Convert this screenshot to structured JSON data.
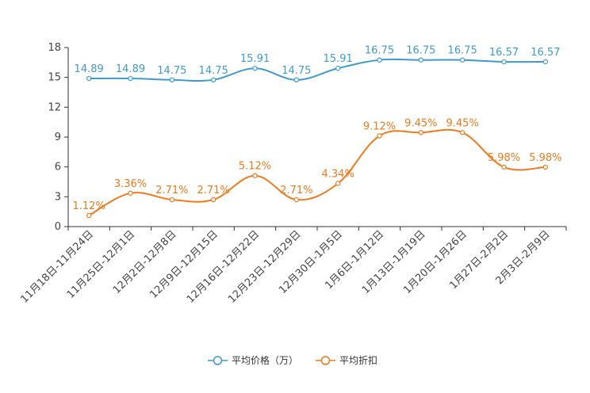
{
  "chart_data": {
    "type": "line",
    "categories": [
      "11月18日-11月24日",
      "11月25日-12月1日",
      "12月2日-12月8日",
      "12月9日-12月15日",
      "12月16日-12月22日",
      "12月23日-12月29日",
      "12月30日-1月5日",
      "1月6日-1月12日",
      "1月13日-1月19日",
      "1月20日-1月26日",
      "1月27日-2月2日",
      "2月3日-2月9日"
    ],
    "ylim": [
      0,
      18
    ],
    "yticks": [
      0,
      3,
      6,
      9,
      12,
      15,
      18
    ],
    "y_tick_labels": [
      "0",
      "3",
      "6",
      "9",
      "12",
      "15",
      "18"
    ],
    "series": [
      {
        "name": "平均价格（万）",
        "color": "#3d9bd1",
        "values": [
          14.89,
          14.89,
          14.75,
          14.75,
          15.91,
          14.75,
          15.91,
          16.75,
          16.75,
          16.75,
          16.57,
          16.57
        ],
        "labels": [
          "14.89",
          "14.89",
          "14.75",
          "14.75",
          "15.91",
          "14.75",
          "15.91",
          "16.75",
          "16.75",
          "16.75",
          "16.57",
          "16.57"
        ]
      },
      {
        "name": "平均折扣",
        "color": "#f07a1a",
        "values": [
          1.12,
          3.36,
          2.71,
          2.71,
          5.12,
          2.71,
          4.34,
          9.12,
          9.45,
          9.45,
          5.98,
          5.98
        ],
        "labels": [
          "1.12%",
          "3.36%",
          "2.71%",
          "2.71%",
          "5.12%",
          "2.71%",
          "4.34%",
          "9.12%",
          "9.45%",
          "9.45%",
          "5.98%",
          "5.98%"
        ]
      }
    ],
    "legend_position": "bottom-center"
  }
}
